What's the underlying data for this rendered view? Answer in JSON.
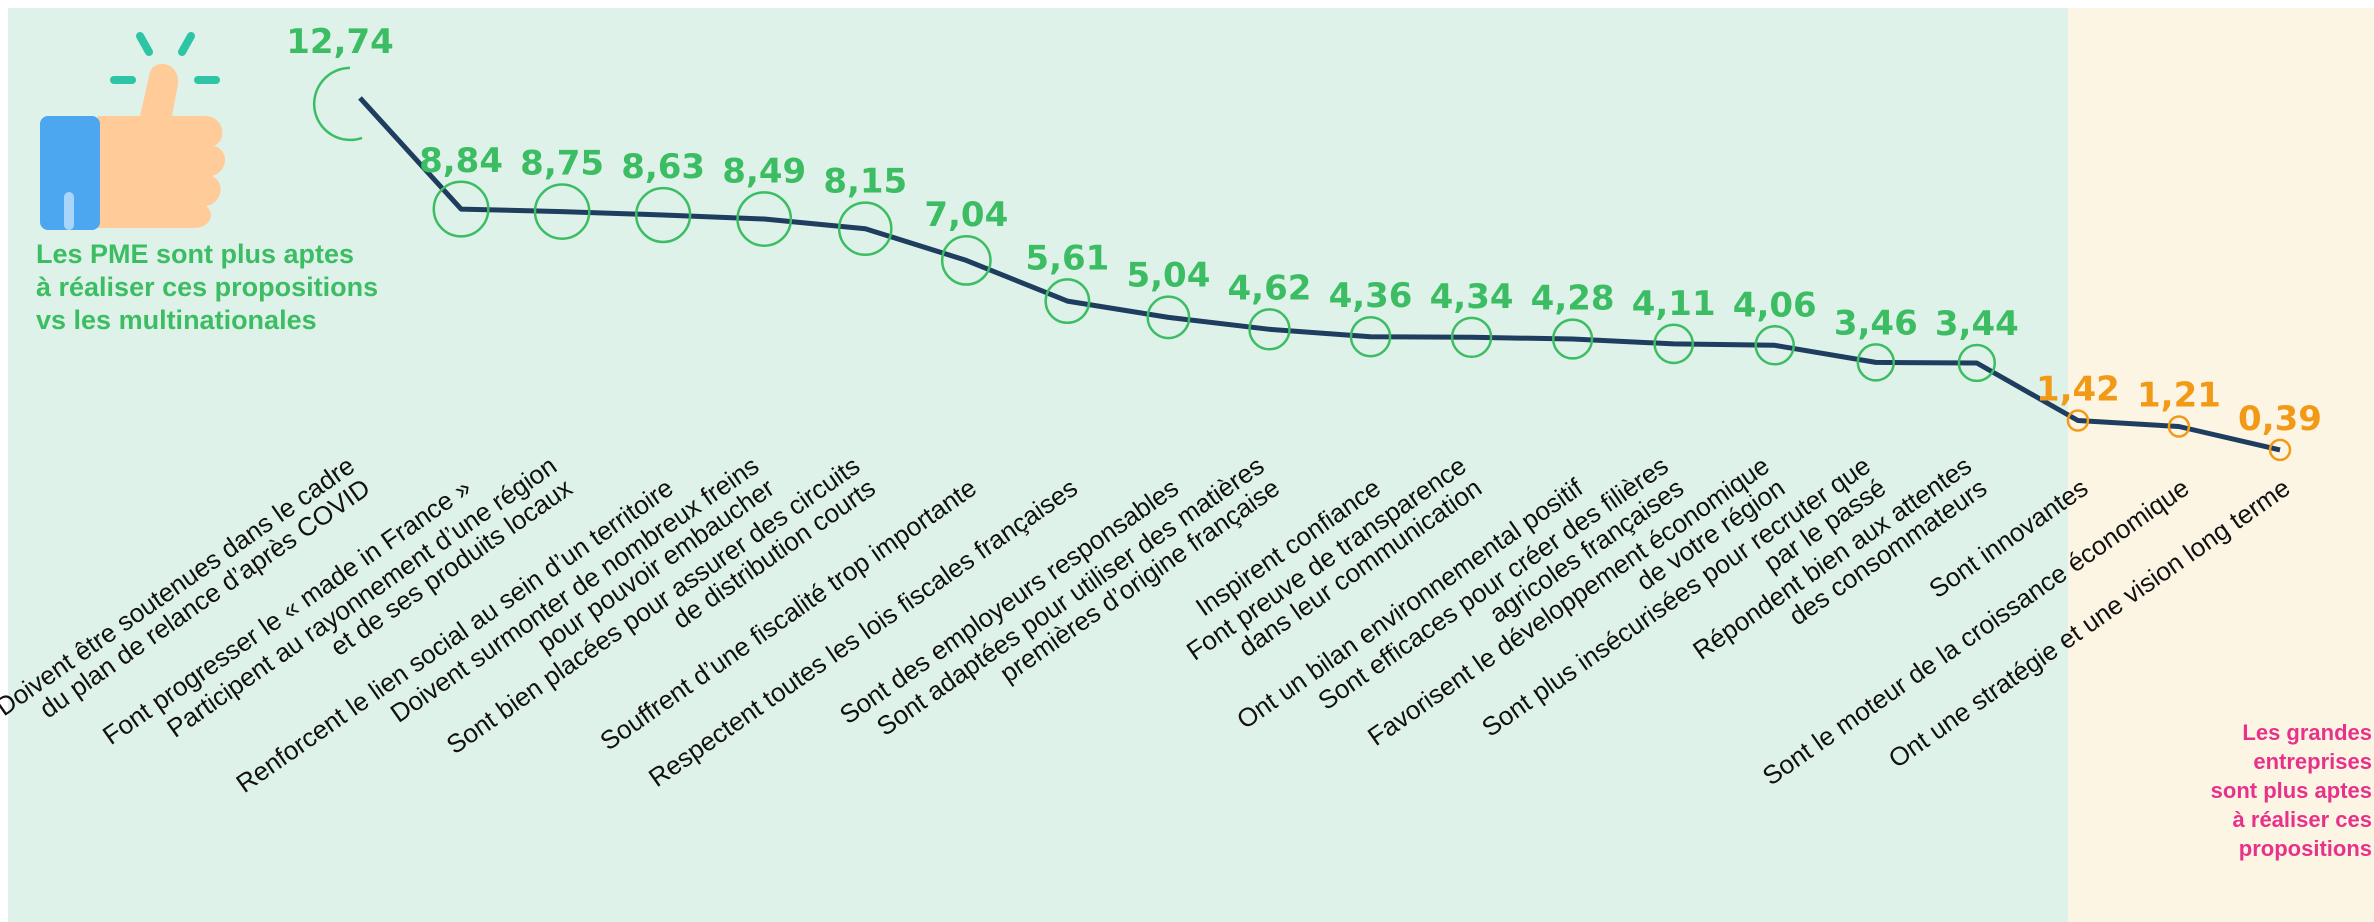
{
  "notes": {
    "pme": [
      "Les PME sont plus aptes",
      "à réaliser ces propositions",
      "vs les multinationales"
    ],
    "grandes": [
      "Les grandes",
      "entreprises",
      "sont plus aptes",
      "à réaliser ces",
      "propositions"
    ]
  },
  "colors": {
    "bg_pme": "#def2e9",
    "bg_grandes": "#fdf5e3",
    "line": "#1e3d5f",
    "pme_value": "#3dbd63",
    "grandes_value": "#f29a17",
    "grandes_note": "#e8318a",
    "thumb_skin": "#ffcc99",
    "thumb_cuff": "#4da6f0",
    "sparkle": "#2ec4a6"
  },
  "chart_data": {
    "type": "line",
    "categories": [
      [
        "Doivent être soutenues dans le cadre",
        "du plan de relance d’après COVID"
      ],
      [
        "Font progresser le « made in France »"
      ],
      [
        "Participent au rayonnement d’une région",
        "et de ses produits locaux"
      ],
      [
        "Renforcent le lien social au sein d’un territoire"
      ],
      [
        "Doivent surmonter de nombreux freins",
        "pour pouvoir embaucher"
      ],
      [
        "Sont bien placées pour assurer des circuits",
        "de distribution courts"
      ],
      [
        "Souffrent d’une fiscalité trop importante"
      ],
      [
        "Respectent toutes les lois fiscales françaises"
      ],
      [
        "Sont des employeurs responsables"
      ],
      [
        "Sont adaptées pour utiliser des matières",
        "premières d’origine française"
      ],
      [
        "Inspirent confiance"
      ],
      [
        "Font preuve de transparence",
        "dans leur communication"
      ],
      [
        "Ont un bilan environnemental positif"
      ],
      [
        "Sont efficaces pour créer des filières",
        "agricoles françaises"
      ],
      [
        "Favorisent le développement économique",
        "de votre région"
      ],
      [
        "Sont plus insécurisées pour recruter que",
        "par le passé"
      ],
      [
        "Répondent bien aux attentes",
        "des consommateurs"
      ],
      [
        "Sont innovantes"
      ],
      [
        "Sont le moteur de la croissance économique"
      ],
      [
        "Ont une stratégie et une vision long terme"
      ]
    ],
    "values": [
      12.74,
      8.84,
      8.75,
      8.63,
      8.49,
      8.15,
      7.04,
      5.61,
      5.04,
      4.62,
      4.36,
      4.34,
      4.28,
      4.11,
      4.06,
      3.46,
      3.44,
      1.42,
      1.21,
      0.39
    ],
    "value_labels": [
      "12,74",
      "8,84",
      "8,75",
      "8,63",
      "8,49",
      "8,15",
      "7,04",
      "5,61",
      "5,04",
      "4,62",
      "4,36",
      "4,34",
      "4,28",
      "4,11",
      "4,06",
      "3,46",
      "3,44",
      "1,42",
      "1,21",
      "0,39"
    ],
    "ylim": [
      0,
      14
    ],
    "grid": false,
    "legend": "none"
  }
}
